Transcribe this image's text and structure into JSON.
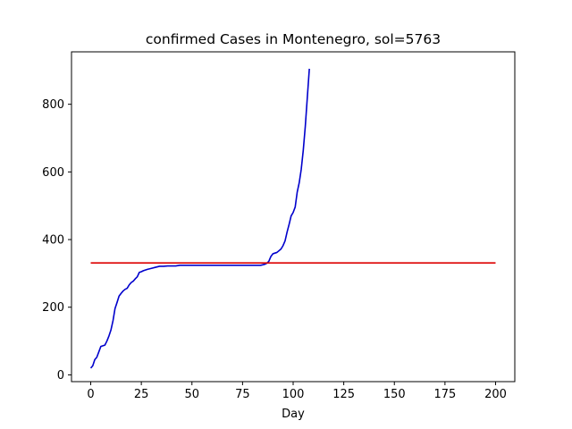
{
  "chart_data": {
    "type": "line",
    "title": "confirmed Cases in Montenegro, sol=5763",
    "xlabel": "Day",
    "ylabel": "",
    "xlim": [
      -9.5,
      209.5
    ],
    "ylim": [
      -20,
      955
    ],
    "xticks": [
      0,
      25,
      50,
      75,
      100,
      125,
      150,
      175,
      200
    ],
    "yticks": [
      0,
      200,
      400,
      600,
      800
    ],
    "grid": false,
    "series": [
      {
        "color": "#0000cc",
        "x": [
          0,
          1,
          2,
          3,
          4,
          5,
          6,
          7,
          8,
          9,
          10,
          11,
          12,
          13,
          14,
          15,
          16,
          17,
          18,
          19,
          20,
          21,
          22,
          23,
          24,
          25,
          26,
          28,
          30,
          32,
          34,
          36,
          38,
          40,
          42,
          44,
          46,
          50,
          55,
          60,
          65,
          70,
          75,
          80,
          84,
          86,
          87,
          88,
          89,
          90,
          92,
          94,
          95,
          96,
          97,
          98,
          99,
          100,
          101,
          102,
          103,
          104,
          105,
          106,
          107,
          108
        ],
        "y": [
          20,
          27,
          45,
          52,
          68,
          84,
          86,
          88,
          100,
          115,
          133,
          160,
          196,
          214,
          233,
          241,
          248,
          253,
          256,
          266,
          273,
          277,
          284,
          290,
          303,
          305,
          308,
          312,
          315,
          318,
          321,
          321,
          322,
          322,
          322,
          324,
          324,
          324,
          324,
          324,
          324,
          324,
          324,
          324,
          324,
          327,
          330,
          336,
          350,
          358,
          362,
          372,
          382,
          396,
          422,
          445,
          470,
          480,
          496,
          540,
          568,
          608,
          664,
          735,
          820,
          905
        ]
      },
      {
        "color": "#dd0000",
        "x": [
          0,
          200
        ],
        "y": [
          331,
          331
        ]
      }
    ]
  }
}
